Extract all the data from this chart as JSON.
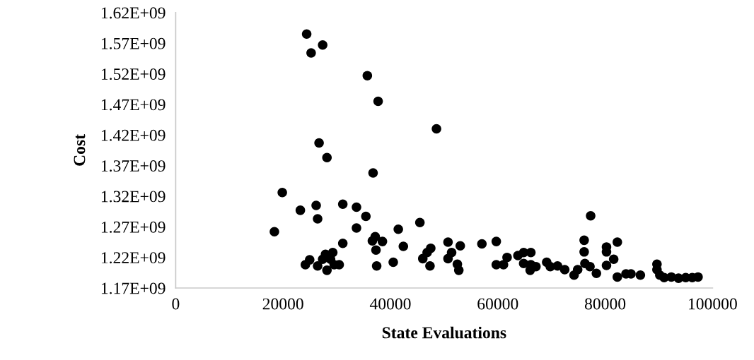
{
  "chart_data": {
    "type": "scatter",
    "xlabel": "State Evaluations",
    "ylabel": "Cost",
    "marker": "circle",
    "grid": false,
    "legend": false,
    "xlim": [
      0,
      100000
    ],
    "xticks": [
      0,
      20000,
      40000,
      60000,
      80000,
      100000
    ],
    "ylim": [
      1170000000.0,
      1620000000.0
    ],
    "yticks": [
      {
        "value": 1170000000.0,
        "label": "1.17E+09"
      },
      {
        "value": 1220000000.0,
        "label": "1.22E+09"
      },
      {
        "value": 1270000000.0,
        "label": "1.27E+09"
      },
      {
        "value": 1320000000.0,
        "label": "1.32E+09"
      },
      {
        "value": 1370000000.0,
        "label": "1.37E+09"
      },
      {
        "value": 1420000000.0,
        "label": "1.42E+09"
      },
      {
        "value": 1470000000.0,
        "label": "1.47E+09"
      },
      {
        "value": 1520000000.0,
        "label": "1.52E+09"
      },
      {
        "value": 1570000000.0,
        "label": "1.57E+09"
      },
      {
        "value": 1620000000.0,
        "label": "1.62E+09"
      }
    ],
    "series": [
      {
        "color": "#000000",
        "x": [
          24400,
          27380,
          25230,
          35700,
          37710,
          48580,
          26710,
          28180,
          36770,
          19860,
          23220,
          26170,
          26440,
          18390,
          31130,
          33680,
          35430,
          33680,
          41470,
          45490,
          31130,
          37170,
          36640,
          38510,
          37310,
          42410,
          50730,
          53010,
          47510,
          46840,
          46030,
          51400,
          50730,
          52470,
          52740,
          47370,
          40530,
          37440,
          27910,
          29260,
          27380,
          28850,
          30460,
          29520,
          28180,
          26440,
          24960,
          24160,
          57040,
          59720,
          59720,
          61060,
          61730,
          63750,
          64820,
          66160,
          64820,
          66160,
          66030,
          67100,
          69110,
          69780,
          71130,
          72470,
          74210,
          74880,
          76090,
          76090,
          76230,
          77300,
          77170,
          78370,
          80250,
          80250,
          81590,
          80250,
          82270,
          82270,
          83880,
          84810,
          86560,
          89650,
          89650,
          90180,
          90990,
          92330,
          93670,
          95010,
          96220,
          97300
        ],
        "values": [
          1585000000.0,
          1567000000.0,
          1554000000.0,
          1517000000.0,
          1475000000.0,
          1430000000.0,
          1407000000.0,
          1383000000.0,
          1358000000.0,
          1326000000.0,
          1297000000.0,
          1305000000.0,
          1283000000.0,
          1262000000.0,
          1307000000.0,
          1302000000.0,
          1287000000.0,
          1268000000.0,
          1266000000.0,
          1277000000.0,
          1243000000.0,
          1254000000.0,
          1247000000.0,
          1246000000.0,
          1232000000.0,
          1238000000.0,
          1245000000.0,
          1239000000.0,
          1235000000.0,
          1228000000.0,
          1218000000.0,
          1228000000.0,
          1218000000.0,
          1209000000.0,
          1199000000.0,
          1206000000.0,
          1212000000.0,
          1206000000.0,
          1225000000.0,
          1228000000.0,
          1217000000.0,
          1217000000.0,
          1208000000.0,
          1208000000.0,
          1199000000.0,
          1206000000.0,
          1216000000.0,
          1208000000.0,
          1242000000.0,
          1246000000.0,
          1208000000.0,
          1208000000.0,
          1220000000.0,
          1223000000.0,
          1228000000.0,
          1228000000.0,
          1210000000.0,
          1208000000.0,
          1199000000.0,
          1205000000.0,
          1212000000.0,
          1205000000.0,
          1206000000.0,
          1200000000.0,
          1191000000.0,
          1200000000.0,
          1248000000.0,
          1229000000.0,
          1210000000.0,
          1288000000.0,
          1205000000.0,
          1194000000.0,
          1237000000.0,
          1229000000.0,
          1217000000.0,
          1207000000.0,
          1245000000.0,
          1188000000.0,
          1193000000.0,
          1193000000.0,
          1191000000.0,
          1209000000.0,
          1200000000.0,
          1191000000.0,
          1187000000.0,
          1188000000.0,
          1186000000.0,
          1187000000.0,
          1187000000.0,
          1188000000.0
        ]
      }
    ]
  }
}
